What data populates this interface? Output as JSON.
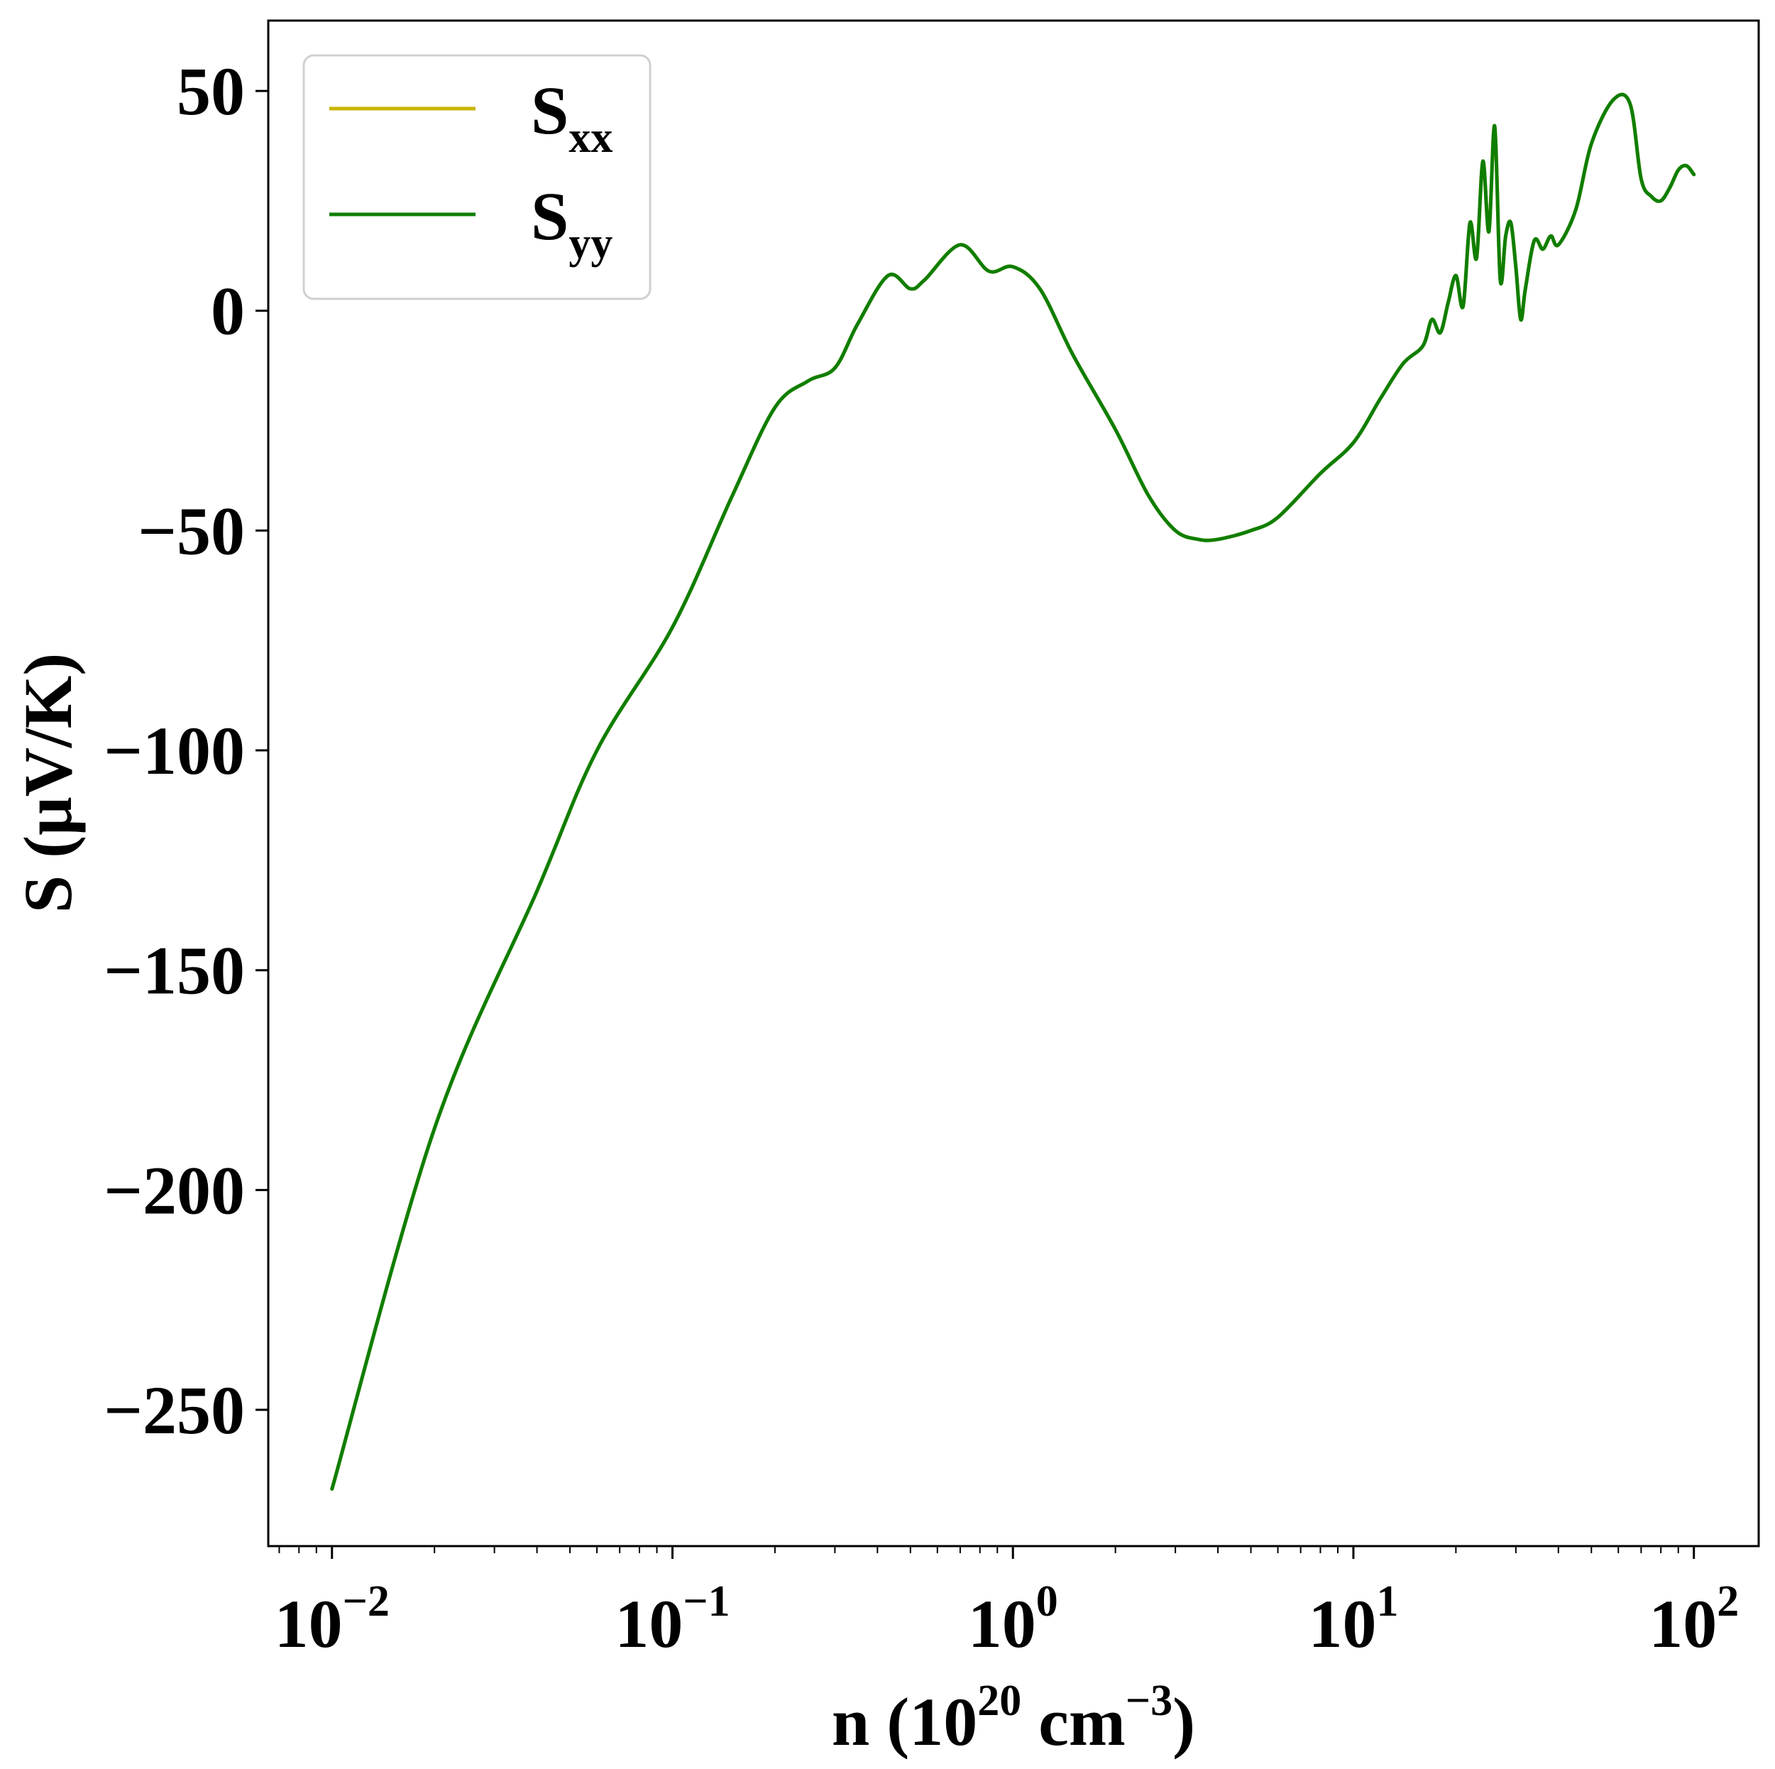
{
  "chart_data": {
    "type": "line",
    "xlabel": {
      "prefix": "n (10",
      "exp": "20",
      "mid": " cm",
      "exp2": "−3",
      "suffix": ")"
    },
    "ylabel": "S (μV/K)",
    "xscale": "log",
    "xlim": [
      0.0065,
      155
    ],
    "ylim": [
      -281,
      66
    ],
    "xticks": [
      {
        "value": 0.01,
        "base": "10",
        "exp": "−2"
      },
      {
        "value": 0.1,
        "base": "10",
        "exp": "−1"
      },
      {
        "value": 1,
        "base": "10",
        "exp": "0"
      },
      {
        "value": 10,
        "base": "10",
        "exp": "1"
      },
      {
        "value": 100,
        "base": "10",
        "exp": "2"
      }
    ],
    "yticks": [
      {
        "value": 50,
        "label": "50"
      },
      {
        "value": 0,
        "label": "0"
      },
      {
        "value": -50,
        "label": "−50"
      },
      {
        "value": -100,
        "label": "−100"
      },
      {
        "value": -150,
        "label": "−150"
      },
      {
        "value": -200,
        "label": "−200"
      },
      {
        "value": -250,
        "label": "−250"
      }
    ],
    "grid": false,
    "legend_position": "top-left",
    "series": [
      {
        "name": "S",
        "sub": "xx",
        "color": "#c8b400",
        "x": [
          0.01,
          0.02,
          0.04,
          0.06,
          0.1,
          0.15,
          0.2,
          0.25,
          0.3,
          0.35,
          0.43,
          0.5,
          0.55,
          0.7,
          0.85,
          1.0,
          1.2,
          1.5,
          2.0,
          2.5,
          3.0,
          3.5,
          4.0,
          5.0,
          6.0,
          8.0,
          10.0,
          12.0,
          14.0,
          16.0,
          17.0,
          18.0,
          19.0,
          20.0,
          21.0,
          22.0,
          23.0,
          24.0,
          25.0,
          26.0,
          27.0,
          28.0,
          29.0,
          30.0,
          31.0,
          32.0,
          34.0,
          36.0,
          38.0,
          40.0,
          45.0,
          50.0,
          58.0,
          65.0,
          70.0,
          75.0,
          80.0,
          85.0,
          90.0,
          95.0,
          100.0
        ],
        "y": [
          -268,
          -186,
          -132,
          -100,
          -72,
          -42,
          -22,
          -16,
          -13,
          -3,
          8,
          5,
          7,
          15,
          9,
          10,
          5,
          -10,
          -27,
          -42,
          -50,
          -52,
          -52,
          -50,
          -47,
          -37,
          -30,
          -20,
          -12,
          -8,
          -2,
          -5,
          2,
          8,
          1,
          20,
          12,
          34,
          18,
          42,
          7,
          17,
          20,
          10,
          -2,
          5,
          16,
          14,
          17,
          15,
          23,
          38,
          48,
          47,
          30,
          26,
          25,
          28,
          32,
          33,
          31
        ]
      },
      {
        "name": "S",
        "sub": "yy",
        "color": "#0f7e00",
        "x": [
          0.01,
          0.02,
          0.04,
          0.06,
          0.1,
          0.15,
          0.2,
          0.25,
          0.3,
          0.35,
          0.43,
          0.5,
          0.55,
          0.7,
          0.85,
          1.0,
          1.2,
          1.5,
          2.0,
          2.5,
          3.0,
          3.5,
          4.0,
          5.0,
          6.0,
          8.0,
          10.0,
          12.0,
          14.0,
          16.0,
          17.0,
          18.0,
          19.0,
          20.0,
          21.0,
          22.0,
          23.0,
          24.0,
          25.0,
          26.0,
          27.0,
          28.0,
          29.0,
          30.0,
          31.0,
          32.0,
          34.0,
          36.0,
          38.0,
          40.0,
          45.0,
          50.0,
          58.0,
          65.0,
          70.0,
          75.0,
          80.0,
          85.0,
          90.0,
          95.0,
          100.0
        ],
        "y": [
          -268,
          -186,
          -132,
          -100,
          -72,
          -42,
          -22,
          -16,
          -13,
          -3,
          8,
          5,
          7,
          15,
          9,
          10,
          5,
          -10,
          -27,
          -42,
          -50,
          -52,
          -52,
          -50,
          -47,
          -37,
          -30,
          -20,
          -12,
          -8,
          -2,
          -5,
          2,
          8,
          1,
          20,
          12,
          34,
          18,
          42,
          7,
          17,
          20,
          10,
          -2,
          5,
          16,
          14,
          17,
          15,
          23,
          38,
          48,
          47,
          30,
          26,
          25,
          28,
          32,
          33,
          31
        ]
      }
    ]
  }
}
